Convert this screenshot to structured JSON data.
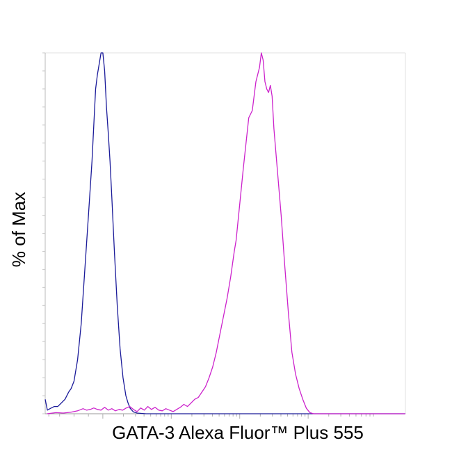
{
  "chart_data": {
    "type": "line",
    "title": "",
    "xlabel": "GATA-3 Alexa Fluor™ Plus 555",
    "ylabel": "% of Max",
    "x_scale": "log",
    "xlim": [
      0,
      100
    ],
    "ylim": [
      0,
      100
    ],
    "grid": false,
    "legend": "none",
    "series": [
      {
        "color": "#1a1a99",
        "points": [
          [
            0,
            4
          ],
          [
            0.6,
            1
          ],
          [
            1.5,
            1.5
          ],
          [
            2.5,
            2
          ],
          [
            3.5,
            2
          ],
          [
            4.5,
            3
          ],
          [
            5.5,
            4
          ],
          [
            6.5,
            6
          ],
          [
            7.2,
            7
          ],
          [
            8,
            9
          ],
          [
            9,
            15
          ],
          [
            10,
            25
          ],
          [
            11,
            40
          ],
          [
            12,
            55
          ],
          [
            13,
            70
          ],
          [
            13.6,
            82
          ],
          [
            14,
            90
          ],
          [
            14.5,
            94
          ],
          [
            15,
            97
          ],
          [
            15.5,
            100
          ],
          [
            16,
            100
          ],
          [
            16.5,
            95
          ],
          [
            17,
            85
          ],
          [
            17.5,
            78
          ],
          [
            18,
            70
          ],
          [
            18.5,
            60
          ],
          [
            19.2,
            45
          ],
          [
            20,
            30
          ],
          [
            20.8,
            18
          ],
          [
            21.6,
            10
          ],
          [
            22.4,
            5
          ],
          [
            23,
            3
          ],
          [
            23.6,
            1.5
          ],
          [
            24.5,
            0.5
          ],
          [
            25.5,
            0.2
          ],
          [
            28,
            0
          ],
          [
            100,
            0
          ]
        ]
      },
      {
        "color": "#cc22cc",
        "points": [
          [
            0.5,
            0
          ],
          [
            3,
            0.3
          ],
          [
            5,
            0.2
          ],
          [
            7,
            0.4
          ],
          [
            8,
            0.6
          ],
          [
            9,
            0.8
          ],
          [
            10.5,
            1.4
          ],
          [
            11.5,
            1.0
          ],
          [
            12.5,
            1.2
          ],
          [
            13.5,
            1.6
          ],
          [
            14.5,
            1.2
          ],
          [
            15.5,
            1.0
          ],
          [
            16.5,
            1.8
          ],
          [
            17.5,
            1.0
          ],
          [
            18.5,
            1.4
          ],
          [
            19.5,
            0.8
          ],
          [
            20.5,
            1.2
          ],
          [
            21.5,
            1.0
          ],
          [
            22.5,
            1.6
          ],
          [
            23.5,
            2.0
          ],
          [
            24.5,
            1.2
          ],
          [
            25.5,
            0.6
          ],
          [
            26.5,
            1.6
          ],
          [
            27.5,
            1.0
          ],
          [
            28.5,
            2.0
          ],
          [
            29.5,
            1.2
          ],
          [
            30.5,
            1.8
          ],
          [
            31.5,
            1.0
          ],
          [
            32.5,
            0.8
          ],
          [
            33.5,
            1.4
          ],
          [
            34.5,
            1.0
          ],
          [
            35.5,
            0.6
          ],
          [
            36.5,
            1.2
          ],
          [
            37.5,
            1.8
          ],
          [
            38.5,
            2.6
          ],
          [
            39.5,
            2.0
          ],
          [
            40.5,
            3.0
          ],
          [
            41.5,
            4.0
          ],
          [
            42.5,
            4.5
          ],
          [
            43.5,
            6.0
          ],
          [
            44.5,
            7.5
          ],
          [
            45.5,
            10
          ],
          [
            46.5,
            13
          ],
          [
            47.5,
            17
          ],
          [
            48.5,
            22
          ],
          [
            49.5,
            27
          ],
          [
            50.5,
            32
          ],
          [
            51.5,
            38
          ],
          [
            52.5,
            45
          ],
          [
            53,
            48
          ],
          [
            54,
            58
          ],
          [
            55,
            68
          ],
          [
            56.5,
            82
          ],
          [
            57.5,
            84
          ],
          [
            58.5,
            92
          ],
          [
            59.5,
            96
          ],
          [
            60,
            100
          ],
          [
            60.5,
            98
          ],
          [
            61,
            92
          ],
          [
            61.5,
            90
          ],
          [
            62,
            89
          ],
          [
            62.5,
            91
          ],
          [
            63,
            88
          ],
          [
            63.5,
            79
          ],
          [
            64.5,
            67
          ],
          [
            65.5,
            55
          ],
          [
            66.5,
            41
          ],
          [
            67.5,
            28
          ],
          [
            68.5,
            17
          ],
          [
            69.5,
            11
          ],
          [
            70.5,
            7
          ],
          [
            71.5,
            4
          ],
          [
            72.5,
            1.5
          ],
          [
            73.5,
            0.3
          ],
          [
            74.5,
            0
          ],
          [
            100,
            0
          ]
        ]
      }
    ]
  }
}
